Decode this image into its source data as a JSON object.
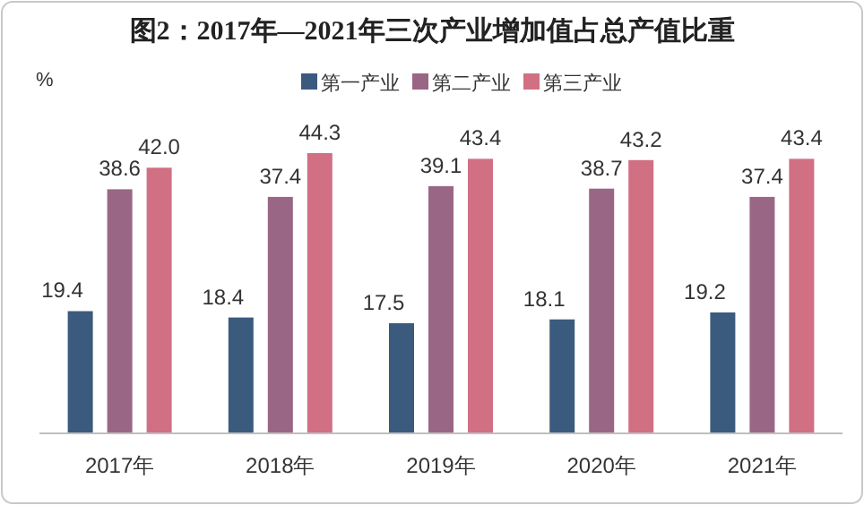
{
  "chart_data": {
    "type": "bar",
    "title": "图2：2017年—2021年三次产业增加值占总产值比重",
    "ylabel": "%",
    "categories": [
      "2017年",
      "2018年",
      "2019年",
      "2020年",
      "2021年"
    ],
    "series": [
      {
        "name": "第一产业",
        "color": "#3b5b7e",
        "values": [
          19.4,
          18.4,
          17.5,
          18.1,
          19.2
        ],
        "value_labels": [
          "19.4",
          "18.4",
          "17.5",
          "18.1",
          "19.2"
        ]
      },
      {
        "name": "第二产业",
        "color": "#9a6685",
        "values": [
          38.6,
          37.4,
          39.1,
          38.7,
          37.4
        ],
        "value_labels": [
          "38.6",
          "37.4",
          "39.1",
          "38.7",
          "37.4"
        ]
      },
      {
        "name": "第三产业",
        "color": "#d07082",
        "values": [
          42.0,
          44.3,
          43.4,
          43.2,
          43.4
        ],
        "value_labels": [
          "42.0",
          "44.3",
          "43.4",
          "43.2",
          "43.4"
        ]
      }
    ],
    "tick_labels": "x",
    "legend": "top"
  }
}
